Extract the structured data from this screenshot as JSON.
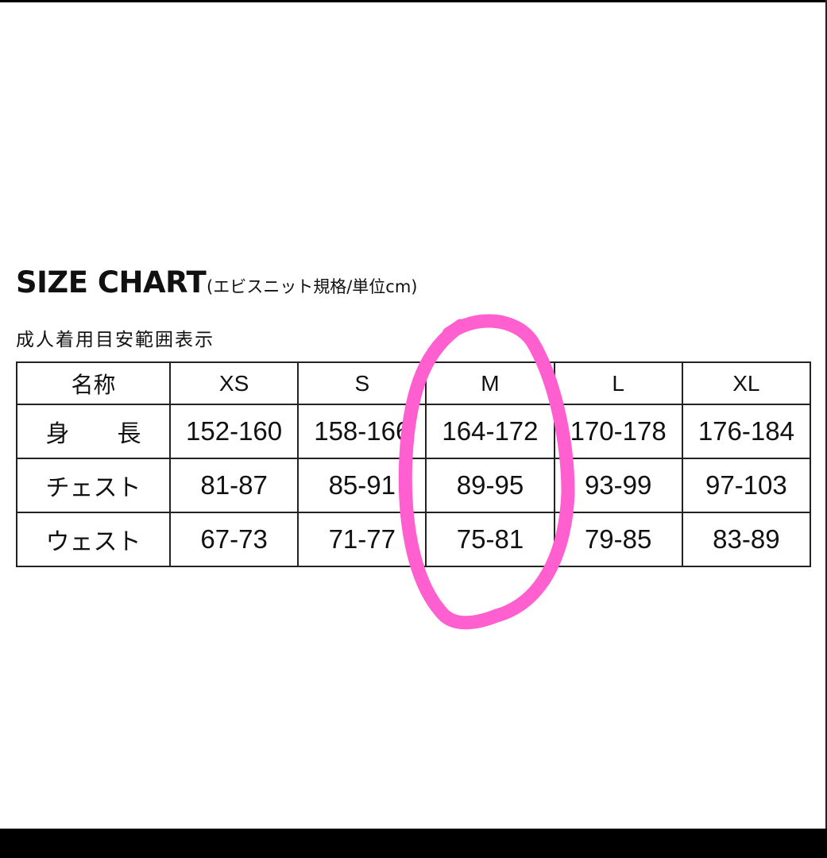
{
  "title": "SIZE CHART",
  "subtitle": "(エビスニット規格/単位cm)",
  "note": "成人着用目安範囲表示",
  "table": {
    "headers": [
      "名称",
      "XS",
      "S",
      "M",
      "L",
      "XL"
    ],
    "rows": [
      {
        "label": "身　　長",
        "values": [
          "152-160",
          "158-166",
          "164-172",
          "170-178",
          "176-184"
        ]
      },
      {
        "label": "チェスト",
        "values": [
          "81-87",
          "85-91",
          "89-95",
          "93-99",
          "97-103"
        ]
      },
      {
        "label": "ウェスト",
        "values": [
          "67-73",
          "71-77",
          "75-81",
          "79-85",
          "83-89"
        ]
      }
    ]
  },
  "highlight": {
    "column": "M",
    "color": "#ff5fcf"
  }
}
